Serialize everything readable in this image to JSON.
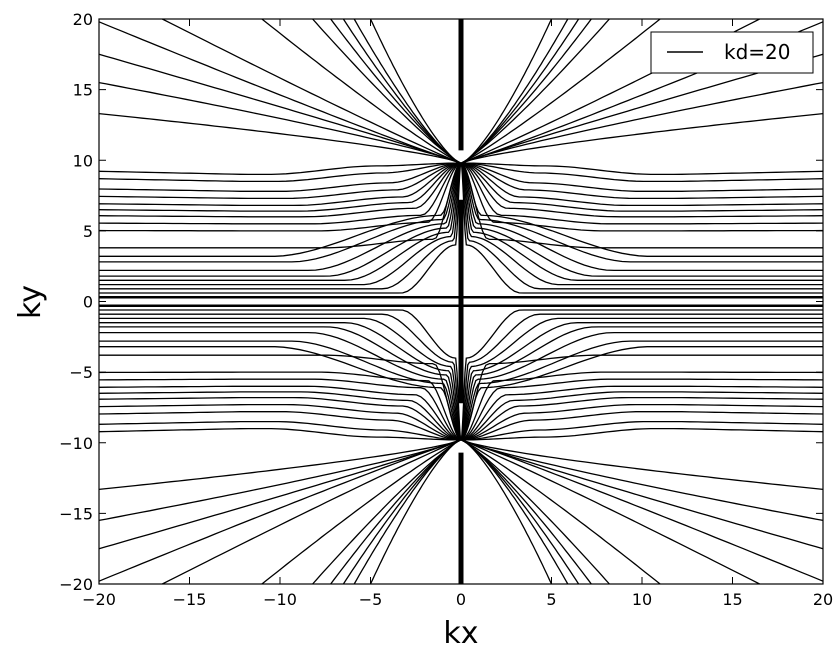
{
  "chart_data": {
    "type": "line",
    "title": "",
    "xlabel": "kx",
    "ylabel": "ky",
    "xlim": [
      -20,
      20
    ],
    "ylim": [
      -20,
      20
    ],
    "xticks": [
      -20,
      -15,
      -10,
      -5,
      0,
      5,
      10,
      15,
      20
    ],
    "yticks": [
      -20,
      -15,
      -10,
      -5,
      0,
      5,
      10,
      15,
      20
    ],
    "xtick_labels": [
      "−20",
      "−15",
      "−10",
      "−5",
      "0",
      "5",
      "10",
      "15",
      "20"
    ],
    "ytick_labels": [
      "−20",
      "−15",
      "−10",
      "−5",
      "0",
      "5",
      "10",
      "15",
      "20"
    ],
    "grid": false,
    "legend": {
      "entries": [
        "kd=20"
      ],
      "placement": "top-right"
    },
    "line_color": "#000000",
    "series": [
      {
        "name": "kd=20",
        "description_family": "field-line contours emanating from singular points at (0, 9.8) and (0, -9.8), symmetric in kx and ky",
        "source_points": [
          [
            0,
            9.8
          ],
          [
            0,
            -9.8
          ]
        ],
        "vertical_segments": [
          {
            "x": 0,
            "y_range": [
              10.7,
              20
            ]
          },
          {
            "x": 0,
            "y_range": [
              -7.2,
              7.2
            ]
          },
          {
            "x": 0,
            "y_range": [
              -20,
              -10.7
            ]
          }
        ],
        "horizontal_line": {
          "y": 0.3,
          "x_range": [
            -20,
            20
          ]
        },
        "near_axis_plateaus": [
          0.6,
          0.9,
          1.2,
          1.5,
          1.8,
          2.2,
          2.8,
          3.2
        ],
        "side_plateaus": [
          3.8,
          5.0,
          5.5,
          6.0,
          6.4,
          6.8,
          7.3,
          7.8,
          8.5,
          9.0
        ],
        "far_edge_values": [
          {
            "x": 20,
            "y": 3.8
          },
          {
            "x": 20,
            "y": 5.0
          },
          {
            "x": 20,
            "y": 5.5
          },
          {
            "x": 20,
            "y": 6.0
          },
          {
            "x": 20,
            "y": 6.4
          },
          {
            "x": 20,
            "y": 6.8
          },
          {
            "x": 20,
            "y": 7.3
          },
          {
            "x": 20,
            "y": 7.8
          },
          {
            "x": 20,
            "y": 8.5
          },
          {
            "x": 20,
            "y": 9.0
          },
          {
            "x": 20,
            "y": 13.3
          },
          {
            "x": 20,
            "y": 15.5
          },
          {
            "x": 20,
            "y": 17.5
          },
          {
            "x": 20,
            "y": 19.8
          }
        ],
        "top_edge_values": [
          {
            "x": 5.0,
            "y": 20
          },
          {
            "x": 5.9,
            "y": 20
          },
          {
            "x": 6.5,
            "y": 20
          },
          {
            "x": 7.2,
            "y": 20
          },
          {
            "x": 8.2,
            "y": 20
          },
          {
            "x": 11.0,
            "y": 20
          },
          {
            "x": 16.5,
            "y": 20
          }
        ]
      }
    ]
  }
}
